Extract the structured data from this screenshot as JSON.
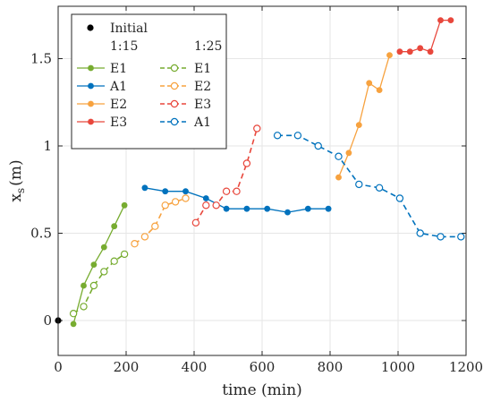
{
  "chart_data": {
    "type": "line",
    "xlabel": "time (min)",
    "ylabel_main": "x",
    "ylabel_sub": "s",
    "ylabel_unit": "(m)",
    "xlim": [
      0,
      1200
    ],
    "ylim": [
      -0.2,
      1.8
    ],
    "xticks": [
      0,
      200,
      400,
      600,
      800,
      1000,
      1200
    ],
    "yticks": [
      0,
      0.5,
      1,
      1.5
    ],
    "xtick_labels": [
      "0",
      "200",
      "400",
      "600",
      "800",
      "1000",
      "1200"
    ],
    "ytick_labels": [
      "0",
      "0.5",
      "1",
      "1.5"
    ],
    "grid": true,
    "legend": {
      "placement": "top-left",
      "initial_label": "Initial",
      "group_headers": [
        "1:15",
        "1:25"
      ]
    },
    "initial_point": {
      "x": 0,
      "y": 0,
      "color": "#000000"
    },
    "series": [
      {
        "name": "E1",
        "group": "1:15",
        "color": "#77ac30",
        "style": "solid",
        "marker": "filled",
        "x": [
          45,
          75,
          105,
          135,
          165,
          195
        ],
        "y": [
          -0.02,
          0.2,
          0.32,
          0.42,
          0.54,
          0.66
        ]
      },
      {
        "name": "A1",
        "group": "1:15",
        "color": "#0072bd",
        "style": "solid",
        "marker": "filled",
        "x": [
          255,
          315,
          375,
          435,
          495,
          555,
          615,
          675,
          735,
          795
        ],
        "y": [
          0.76,
          0.74,
          0.74,
          0.7,
          0.64,
          0.64,
          0.64,
          0.62,
          0.64,
          0.64
        ]
      },
      {
        "name": "E2",
        "group": "1:15",
        "color": "#f7a23f",
        "style": "solid",
        "marker": "filled",
        "x": [
          825,
          855,
          885,
          915,
          945,
          975
        ],
        "y": [
          0.82,
          0.96,
          1.12,
          1.36,
          1.32,
          1.52
        ]
      },
      {
        "name": "E3",
        "group": "1:15",
        "color": "#e8473c",
        "style": "solid",
        "marker": "filled",
        "x": [
          1005,
          1035,
          1065,
          1095,
          1125,
          1155
        ],
        "y": [
          1.54,
          1.54,
          1.56,
          1.54,
          1.72,
          1.72
        ]
      },
      {
        "name": "E1",
        "group": "1:25",
        "color": "#77ac30",
        "style": "dashed",
        "marker": "open",
        "x": [
          45,
          75,
          105,
          135,
          165,
          195
        ],
        "y": [
          0.04,
          0.08,
          0.2,
          0.28,
          0.34,
          0.38
        ]
      },
      {
        "name": "E2",
        "group": "1:25",
        "color": "#f7a23f",
        "style": "dashed",
        "marker": "open",
        "x": [
          225,
          255,
          285,
          315,
          345,
          375
        ],
        "y": [
          0.44,
          0.48,
          0.54,
          0.66,
          0.68,
          0.7
        ]
      },
      {
        "name": "E3",
        "group": "1:25",
        "color": "#e8473c",
        "style": "dashed",
        "marker": "open",
        "x": [
          405,
          435,
          465,
          495,
          525,
          555,
          585
        ],
        "y": [
          0.56,
          0.66,
          0.66,
          0.74,
          0.74,
          0.9,
          1.1
        ]
      },
      {
        "name": "A1",
        "group": "1:25",
        "color": "#0072bd",
        "style": "dashed",
        "marker": "open",
        "x": [
          645,
          705,
          765,
          825,
          885,
          945,
          1005,
          1065,
          1125,
          1185
        ],
        "y": [
          1.06,
          1.06,
          1.0,
          0.94,
          0.78,
          0.76,
          0.7,
          0.5,
          0.48,
          0.48
        ]
      }
    ]
  }
}
